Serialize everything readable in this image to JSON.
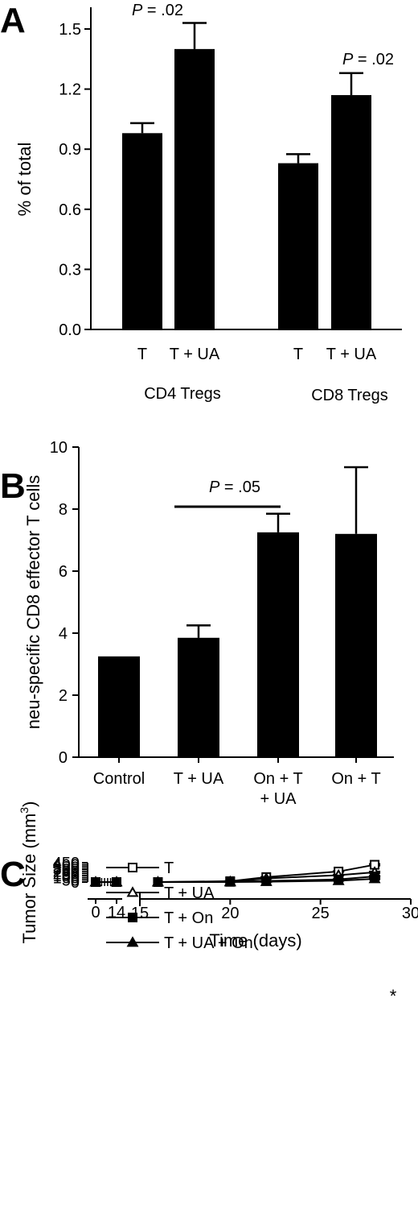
{
  "chart_data": [
    {
      "panel": "A",
      "type": "bar",
      "ylabel": "% of total",
      "ylim": [
        0,
        1.5
      ],
      "yticks": [
        "0.0",
        "0.3",
        "0.6",
        "0.9",
        "1.2",
        "1.5"
      ],
      "categories": [
        "T",
        "T + UA",
        "T",
        "T + UA"
      ],
      "groups": [
        "CD4 Tregs",
        "CD8 Tregs"
      ],
      "values": [
        0.98,
        1.4,
        0.83,
        1.17
      ],
      "errors": [
        0.05,
        0.13,
        0.045,
        0.11
      ],
      "annotations": [
        "P = .02",
        "P = .02"
      ]
    },
    {
      "panel": "B",
      "type": "bar",
      "ylabel": "neu-specific CD8 effector T cells",
      "ylim": [
        0,
        10
      ],
      "yticks": [
        "0",
        "2",
        "4",
        "6",
        "8",
        "10"
      ],
      "categories": [
        [
          "Control"
        ],
        [
          "T + UA"
        ],
        [
          "On + T",
          "+ UA"
        ],
        [
          "On + T"
        ]
      ],
      "values": [
        3.25,
        3.85,
        7.25,
        7.2
      ],
      "errors": [
        0,
        0.4,
        0.6,
        2.15
      ],
      "annotations": [
        "P = .05"
      ]
    },
    {
      "panel": "C",
      "type": "line",
      "xlabel": "Time (days)",
      "ylabel": "Tumor Size (mm",
      "ylabel_sup": "3",
      "ylabel_close": ")",
      "ylim": [
        0,
        450
      ],
      "yticks": [
        "0",
        "50",
        "100",
        "150",
        "200",
        "250",
        "300",
        "350",
        "400",
        "450"
      ],
      "xticks_left": [
        "0",
        "14"
      ],
      "xticks_right": [
        "15",
        "20",
        "25",
        "30"
      ],
      "x": [
        0,
        14,
        16,
        20,
        22,
        26,
        28
      ],
      "series": [
        {
          "name": "T",
          "marker": "open-square",
          "values": [
            0,
            0,
            0,
            20,
            115,
            245,
            402
          ],
          "errors": [
            0,
            0,
            0,
            3,
            5,
            10,
            20
          ]
        },
        {
          "name": "T + UA",
          "marker": "open-triangle",
          "values": [
            0,
            0,
            0,
            8,
            85,
            160,
            228
          ],
          "errors": [
            0,
            0,
            0,
            2,
            5,
            12,
            18
          ]
        },
        {
          "name": "T + On",
          "marker": "filled-square",
          "values": [
            0,
            0,
            0,
            5,
            25,
            60,
            132
          ],
          "errors": [
            0,
            0,
            0,
            1,
            3,
            4,
            12
          ]
        },
        {
          "name": "T + UA + On",
          "marker": "filled-triangle",
          "values": [
            0,
            0,
            0,
            0,
            8,
            30,
            75
          ],
          "errors": [
            0,
            0,
            0,
            0,
            2,
            3,
            13
          ]
        }
      ],
      "annotations": [
        "*"
      ]
    }
  ]
}
